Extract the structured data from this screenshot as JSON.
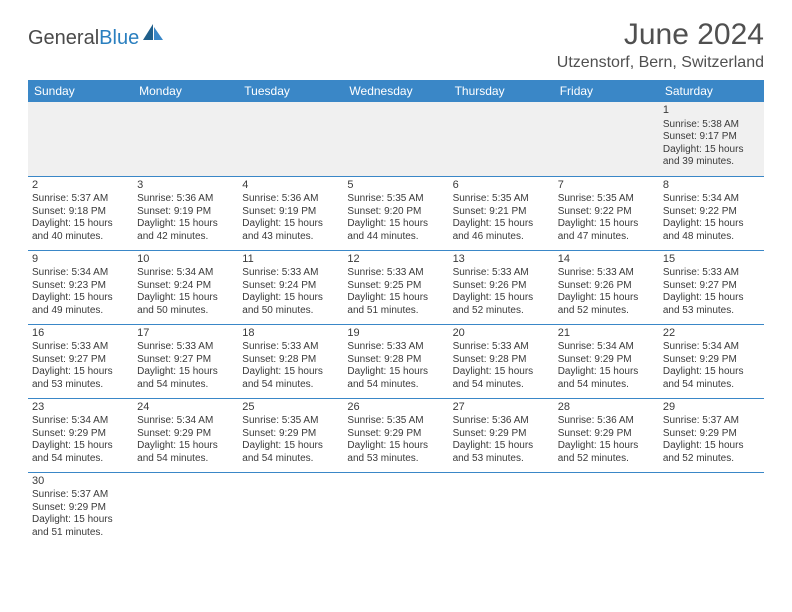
{
  "logo": {
    "text_general": "General",
    "text_blue": "Blue"
  },
  "title": "June 2024",
  "location": "Utzenstorf, Bern, Switzerland",
  "colors": {
    "header_bg": "#3a87c7",
    "header_text": "#ffffff",
    "row_border": "#3a87c7",
    "first_row_bg": "#f0f0f0",
    "text": "#3a3a3a",
    "title_text": "#505050"
  },
  "weekdays": [
    "Sunday",
    "Monday",
    "Tuesday",
    "Wednesday",
    "Thursday",
    "Friday",
    "Saturday"
  ],
  "days": [
    {
      "n": 1,
      "sr": "5:38 AM",
      "ss": "9:17 PM",
      "dl": "15 hours and 39 minutes."
    },
    {
      "n": 2,
      "sr": "5:37 AM",
      "ss": "9:18 PM",
      "dl": "15 hours and 40 minutes."
    },
    {
      "n": 3,
      "sr": "5:36 AM",
      "ss": "9:19 PM",
      "dl": "15 hours and 42 minutes."
    },
    {
      "n": 4,
      "sr": "5:36 AM",
      "ss": "9:19 PM",
      "dl": "15 hours and 43 minutes."
    },
    {
      "n": 5,
      "sr": "5:35 AM",
      "ss": "9:20 PM",
      "dl": "15 hours and 44 minutes."
    },
    {
      "n": 6,
      "sr": "5:35 AM",
      "ss": "9:21 PM",
      "dl": "15 hours and 46 minutes."
    },
    {
      "n": 7,
      "sr": "5:35 AM",
      "ss": "9:22 PM",
      "dl": "15 hours and 47 minutes."
    },
    {
      "n": 8,
      "sr": "5:34 AM",
      "ss": "9:22 PM",
      "dl": "15 hours and 48 minutes."
    },
    {
      "n": 9,
      "sr": "5:34 AM",
      "ss": "9:23 PM",
      "dl": "15 hours and 49 minutes."
    },
    {
      "n": 10,
      "sr": "5:34 AM",
      "ss": "9:24 PM",
      "dl": "15 hours and 50 minutes."
    },
    {
      "n": 11,
      "sr": "5:33 AM",
      "ss": "9:24 PM",
      "dl": "15 hours and 50 minutes."
    },
    {
      "n": 12,
      "sr": "5:33 AM",
      "ss": "9:25 PM",
      "dl": "15 hours and 51 minutes."
    },
    {
      "n": 13,
      "sr": "5:33 AM",
      "ss": "9:26 PM",
      "dl": "15 hours and 52 minutes."
    },
    {
      "n": 14,
      "sr": "5:33 AM",
      "ss": "9:26 PM",
      "dl": "15 hours and 52 minutes."
    },
    {
      "n": 15,
      "sr": "5:33 AM",
      "ss": "9:27 PM",
      "dl": "15 hours and 53 minutes."
    },
    {
      "n": 16,
      "sr": "5:33 AM",
      "ss": "9:27 PM",
      "dl": "15 hours and 53 minutes."
    },
    {
      "n": 17,
      "sr": "5:33 AM",
      "ss": "9:27 PM",
      "dl": "15 hours and 54 minutes."
    },
    {
      "n": 18,
      "sr": "5:33 AM",
      "ss": "9:28 PM",
      "dl": "15 hours and 54 minutes."
    },
    {
      "n": 19,
      "sr": "5:33 AM",
      "ss": "9:28 PM",
      "dl": "15 hours and 54 minutes."
    },
    {
      "n": 20,
      "sr": "5:33 AM",
      "ss": "9:28 PM",
      "dl": "15 hours and 54 minutes."
    },
    {
      "n": 21,
      "sr": "5:34 AM",
      "ss": "9:29 PM",
      "dl": "15 hours and 54 minutes."
    },
    {
      "n": 22,
      "sr": "5:34 AM",
      "ss": "9:29 PM",
      "dl": "15 hours and 54 minutes."
    },
    {
      "n": 23,
      "sr": "5:34 AM",
      "ss": "9:29 PM",
      "dl": "15 hours and 54 minutes."
    },
    {
      "n": 24,
      "sr": "5:34 AM",
      "ss": "9:29 PM",
      "dl": "15 hours and 54 minutes."
    },
    {
      "n": 25,
      "sr": "5:35 AM",
      "ss": "9:29 PM",
      "dl": "15 hours and 54 minutes."
    },
    {
      "n": 26,
      "sr": "5:35 AM",
      "ss": "9:29 PM",
      "dl": "15 hours and 53 minutes."
    },
    {
      "n": 27,
      "sr": "5:36 AM",
      "ss": "9:29 PM",
      "dl": "15 hours and 53 minutes."
    },
    {
      "n": 28,
      "sr": "5:36 AM",
      "ss": "9:29 PM",
      "dl": "15 hours and 52 minutes."
    },
    {
      "n": 29,
      "sr": "5:37 AM",
      "ss": "9:29 PM",
      "dl": "15 hours and 52 minutes."
    },
    {
      "n": 30,
      "sr": "5:37 AM",
      "ss": "9:29 PM",
      "dl": "15 hours and 51 minutes."
    }
  ],
  "labels": {
    "sunrise": "Sunrise:",
    "sunset": "Sunset:",
    "daylight": "Daylight:"
  },
  "layout": {
    "first_weekday_index": 6,
    "rows": 6,
    "cols": 7
  }
}
